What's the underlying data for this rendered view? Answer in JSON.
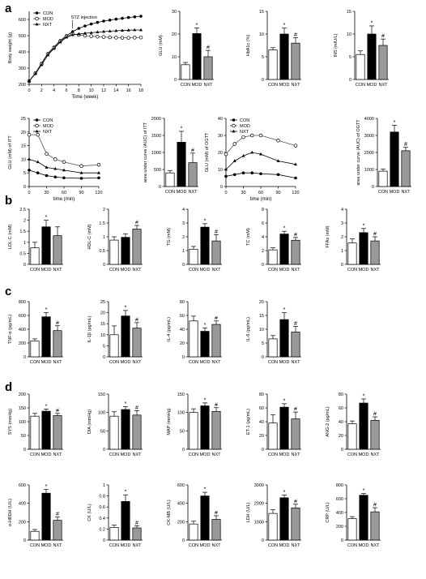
{
  "panel_letters": [
    "a",
    "b",
    "c",
    "d"
  ],
  "colors": {
    "CON": "#ffffff",
    "MOD": "#000000",
    "NXT": "#999999",
    "axis": "#000000"
  },
  "chart_data": [
    {
      "type": "line",
      "panel": "a",
      "xlabel": "Time (week)",
      "ylabel": "Body weight (g)",
      "annotation": "STZ injection",
      "annotation_x": 7,
      "xlim": [
        0,
        18
      ],
      "ylim": [
        200,
        650
      ],
      "xticks": [
        0,
        2,
        4,
        6,
        8,
        10,
        12,
        14,
        16,
        18
      ],
      "yticks": [
        200,
        300,
        400,
        500,
        600
      ],
      "x": [
        0,
        1,
        2,
        3,
        4,
        5,
        6,
        7,
        8,
        9,
        10,
        11,
        12,
        13,
        14,
        15,
        16,
        17,
        18
      ],
      "series": [
        {
          "name": "CON",
          "values": [
            220,
            270,
            330,
            390,
            430,
            470,
            500,
            525,
            545,
            560,
            572,
            582,
            590,
            596,
            602,
            607,
            612,
            616,
            620
          ]
        },
        {
          "name": "MOD",
          "values": [
            220,
            268,
            325,
            385,
            425,
            465,
            495,
            510,
            505,
            500,
            497,
            494,
            492,
            490,
            488,
            487,
            487,
            488,
            489
          ]
        },
        {
          "name": "NXT",
          "values": [
            220,
            265,
            320,
            380,
            420,
            460,
            490,
            505,
            510,
            515,
            518,
            522,
            525,
            528,
            530,
            532,
            534,
            535,
            535
          ]
        }
      ]
    },
    {
      "type": "bar",
      "panel": "a",
      "ylabel": "GLU (mM)",
      "categories": [
        "CON",
        "MOD",
        "NXT"
      ],
      "values": [
        6.5,
        20.2,
        10
      ],
      "errors": [
        1,
        2.5,
        2.8
      ],
      "ylim": [
        0,
        30
      ],
      "yticks": [
        0,
        10,
        20,
        30
      ],
      "marks": [
        "",
        "*",
        "#"
      ]
    },
    {
      "type": "bar",
      "panel": "a",
      "ylabel": "HbA1c (%)",
      "categories": [
        "CON",
        "MOD",
        "NXT"
      ],
      "values": [
        6.5,
        10,
        8
      ],
      "errors": [
        0.5,
        1.3,
        1.2
      ],
      "ylim": [
        0,
        15
      ],
      "yticks": [
        0,
        5,
        10,
        15
      ],
      "marks": [
        "",
        "*",
        "#"
      ]
    },
    {
      "type": "bar",
      "panel": "a",
      "ylabel": "INS (mIU/L)",
      "categories": [
        "CON",
        "MOD",
        "NXT"
      ],
      "values": [
        5.5,
        10,
        7.5
      ],
      "errors": [
        0.8,
        1.8,
        1.4
      ],
      "ylim": [
        0,
        15
      ],
      "yticks": [
        0,
        5,
        10,
        15
      ],
      "marks": [
        "",
        "*",
        "#"
      ]
    },
    {
      "type": "line",
      "panel": "a",
      "xlabel": "time (min)",
      "ylabel": "GLU (mM) of ITT",
      "xlim": [
        0,
        120
      ],
      "ylim": [
        0,
        25
      ],
      "xticks": [
        0,
        30,
        60,
        90,
        120
      ],
      "yticks": [
        0,
        5,
        10,
        15,
        20,
        25
      ],
      "x": [
        0,
        15,
        30,
        45,
        60,
        90,
        120
      ],
      "series": [
        {
          "name": "CON",
          "values": [
            6,
            5,
            4,
            3.5,
            3.2,
            3,
            3.2
          ]
        },
        {
          "name": "MOD",
          "values": [
            19,
            19,
            12,
            10,
            9,
            7.5,
            8
          ]
        },
        {
          "name": "NXT",
          "values": [
            10,
            9,
            7,
            6.5,
            6,
            5,
            5
          ]
        }
      ]
    },
    {
      "type": "bar",
      "panel": "a",
      "ylabel": "area under curve (AUC) of ITT",
      "categories": [
        "CON",
        "MOD",
        "NXT"
      ],
      "values": [
        400,
        1300,
        700
      ],
      "errors": [
        70,
        320,
        280
      ],
      "ylim": [
        0,
        2000
      ],
      "yticks": [
        0,
        500,
        1000,
        1500,
        2000
      ],
      "marks": [
        "",
        "*",
        "#"
      ]
    },
    {
      "type": "line",
      "panel": "a",
      "xlabel": "time (min)",
      "ylabel": "GLU (mM) of OGTT",
      "xlim": [
        0,
        120
      ],
      "ylim": [
        0,
        40
      ],
      "xticks": [
        0,
        30,
        60,
        90,
        120
      ],
      "yticks": [
        0,
        10,
        20,
        30,
        40
      ],
      "x": [
        0,
        15,
        30,
        45,
        60,
        90,
        120
      ],
      "series": [
        {
          "name": "CON",
          "values": [
            6,
            7,
            8,
            8,
            7.5,
            7,
            5
          ]
        },
        {
          "name": "MOD",
          "values": [
            19,
            25,
            29,
            30,
            30,
            27,
            24
          ]
        },
        {
          "name": "NXT",
          "values": [
            10,
            15,
            18,
            20,
            19,
            15,
            13
          ]
        }
      ]
    },
    {
      "type": "bar",
      "panel": "a",
      "ylabel": "area under curve (AUC) of OGTT",
      "categories": [
        "CON",
        "MOD",
        "NXT"
      ],
      "values": [
        900,
        3200,
        2100
      ],
      "errors": [
        120,
        400,
        200
      ],
      "ylim": [
        0,
        4000
      ],
      "yticks": [
        0,
        1000,
        2000,
        3000,
        4000
      ],
      "marks": [
        "",
        "*",
        "#"
      ]
    },
    {
      "type": "bar",
      "panel": "b",
      "ylabel": "LDL-C (mM)",
      "categories": [
        "CON",
        "MOD",
        "NXT"
      ],
      "values": [
        0.75,
        1.7,
        1.3
      ],
      "errors": [
        0.25,
        0.3,
        0.4
      ],
      "ylim": [
        0,
        2.5
      ],
      "yticks": [
        0,
        0.5,
        1.0,
        1.5,
        2.0,
        2.5
      ],
      "marks": [
        "",
        "*",
        ""
      ]
    },
    {
      "type": "bar",
      "panel": "b",
      "ylabel": "HDL-C (mM)",
      "categories": [
        "CON",
        "MOD",
        "NXT"
      ],
      "values": [
        0.88,
        0.98,
        1.28
      ],
      "errors": [
        0.12,
        0.13,
        0.13
      ],
      "ylim": [
        0,
        2.0
      ],
      "yticks": [
        0,
        0.5,
        1.0,
        1.5,
        2.0
      ],
      "marks": [
        "",
        "",
        "#"
      ]
    },
    {
      "type": "bar",
      "panel": "b",
      "ylabel": "TG (mM)",
      "categories": [
        "CON",
        "MOD",
        "NXT"
      ],
      "values": [
        1.1,
        2.7,
        1.7
      ],
      "errors": [
        0.2,
        0.25,
        0.45
      ],
      "ylim": [
        0,
        4
      ],
      "yticks": [
        0,
        1,
        2,
        3,
        4
      ],
      "marks": [
        "",
        "*",
        "#"
      ]
    },
    {
      "type": "bar",
      "panel": "b",
      "ylabel": "TC (mM)",
      "categories": [
        "CON",
        "MOD",
        "NXT"
      ],
      "values": [
        2.1,
        4.4,
        3.5
      ],
      "errors": [
        0.3,
        0.4,
        0.4
      ],
      "ylim": [
        0,
        8
      ],
      "yticks": [
        0,
        2,
        4,
        6,
        8
      ],
      "marks": [
        "",
        "*",
        "#"
      ]
    },
    {
      "type": "bar",
      "panel": "b",
      "ylabel": "FFAs (mM)",
      "categories": [
        "CON",
        "MOD",
        "NXT"
      ],
      "values": [
        1.55,
        2.3,
        1.7
      ],
      "errors": [
        0.3,
        0.3,
        0.3
      ],
      "ylim": [
        0,
        4
      ],
      "yticks": [
        0,
        1,
        2,
        3,
        4
      ],
      "marks": [
        "",
        "*",
        "#"
      ]
    },
    {
      "type": "bar",
      "panel": "c",
      "ylabel": "TNF-α (pg/mL)",
      "categories": [
        "CON",
        "MOD",
        "NXT"
      ],
      "values": [
        230,
        580,
        380
      ],
      "errors": [
        30,
        60,
        70
      ],
      "ylim": [
        0,
        800
      ],
      "yticks": [
        0,
        200,
        400,
        600,
        800
      ],
      "marks": [
        "",
        "*",
        "#"
      ]
    },
    {
      "type": "bar",
      "panel": "c",
      "ylabel": "IL-1β (pg/mL)",
      "categories": [
        "CON",
        "MOD",
        "NXT"
      ],
      "values": [
        10,
        18.5,
        13
      ],
      "errors": [
        4,
        2.5,
        2.5
      ],
      "ylim": [
        0,
        25
      ],
      "yticks": [
        0,
        5,
        10,
        15,
        20,
        25
      ],
      "marks": [
        "",
        "*",
        "#"
      ]
    },
    {
      "type": "bar",
      "panel": "c",
      "ylabel": "IL-4 (pg/mL)",
      "categories": [
        "CON",
        "MOD",
        "NXT"
      ],
      "values": [
        52,
        37,
        47
      ],
      "errors": [
        7,
        5,
        5
      ],
      "ylim": [
        0,
        80
      ],
      "yticks": [
        0,
        20,
        40,
        60,
        80
      ],
      "marks": [
        "",
        "*",
        "#"
      ]
    },
    {
      "type": "bar",
      "panel": "c",
      "ylabel": "IL-6 (pg/mL)",
      "categories": [
        "CON",
        "MOD",
        "NXT"
      ],
      "values": [
        6.5,
        13.5,
        9
      ],
      "errors": [
        1.2,
        2.5,
        2
      ],
      "ylim": [
        0,
        20
      ],
      "yticks": [
        0,
        5,
        10,
        15,
        20
      ],
      "marks": [
        "",
        "*",
        "#"
      ]
    },
    {
      "type": "bar",
      "panel": "d",
      "ylabel": "SYS (mmHg)",
      "categories": [
        "CON",
        "MOD",
        "NXT"
      ],
      "values": [
        120,
        138,
        122
      ],
      "errors": [
        10,
        8,
        8
      ],
      "ylim": [
        0,
        200
      ],
      "yticks": [
        0,
        50,
        100,
        150,
        200
      ],
      "marks": [
        "",
        "*",
        "#"
      ]
    },
    {
      "type": "bar",
      "panel": "d",
      "ylabel": "DIA (mmHg)",
      "categories": [
        "CON",
        "MOD",
        "NXT"
      ],
      "values": [
        90,
        108,
        93
      ],
      "errors": [
        12,
        8,
        12
      ],
      "ylim": [
        0,
        150
      ],
      "yticks": [
        0,
        50,
        100,
        150
      ],
      "marks": [
        "",
        "*",
        "#"
      ]
    },
    {
      "type": "bar",
      "panel": "d",
      "ylabel": "MAP (mmHg)",
      "categories": [
        "CON",
        "MOD",
        "NXT"
      ],
      "values": [
        100,
        118,
        103
      ],
      "errors": [
        10,
        8,
        10
      ],
      "ylim": [
        0,
        150
      ],
      "yticks": [
        0,
        50,
        100,
        150
      ],
      "marks": [
        "",
        "*",
        "#"
      ]
    },
    {
      "type": "bar",
      "panel": "d",
      "ylabel": "ET-1 (pg/mL)",
      "categories": [
        "CON",
        "MOD",
        "NXT"
      ],
      "values": [
        38,
        61,
        44
      ],
      "errors": [
        12,
        5,
        10
      ],
      "ylim": [
        0,
        80
      ],
      "yticks": [
        0,
        20,
        40,
        60,
        80
      ],
      "marks": [
        "",
        "*",
        "#"
      ]
    },
    {
      "type": "bar",
      "panel": "d",
      "ylabel": "ANG-2 (pg/mL)",
      "categories": [
        "CON",
        "MOD",
        "NXT"
      ],
      "values": [
        37,
        67,
        42
      ],
      "errors": [
        4,
        6,
        5
      ],
      "ylim": [
        0,
        80
      ],
      "yticks": [
        0,
        20,
        40,
        60,
        80
      ],
      "marks": [
        "",
        "*",
        "#"
      ]
    },
    {
      "type": "bar",
      "panel": "d",
      "ylabel": "α-HBDH (U/L)",
      "categories": [
        "CON",
        "MOD",
        "NXT"
      ],
      "values": [
        95,
        510,
        215
      ],
      "errors": [
        20,
        40,
        35
      ],
      "ylim": [
        0,
        600
      ],
      "yticks": [
        0,
        200,
        400,
        600
      ],
      "marks": [
        "",
        "*",
        "#"
      ]
    },
    {
      "type": "bar",
      "panel": "d",
      "ylabel": "CK (U/L)",
      "categories": [
        "CON",
        "MOD",
        "NXT"
      ],
      "values": [
        0.23,
        0.7,
        0.22
      ],
      "errors": [
        0.04,
        0.12,
        0.04
      ],
      "ylim": [
        0,
        1.0
      ],
      "yticks": [
        0,
        0.2,
        0.4,
        0.6,
        0.8,
        1.0
      ],
      "marks": [
        "",
        "*",
        "#"
      ]
    },
    {
      "type": "bar",
      "panel": "d",
      "ylabel": "CK-MB (U/L)",
      "categories": [
        "CON",
        "MOD",
        "NXT"
      ],
      "values": [
        175,
        480,
        225
      ],
      "errors": [
        30,
        40,
        40
      ],
      "ylim": [
        0,
        600
      ],
      "yticks": [
        0,
        200,
        400,
        600
      ],
      "marks": [
        "",
        "*",
        "#"
      ]
    },
    {
      "type": "bar",
      "panel": "d",
      "ylabel": "LDH (U/L)",
      "categories": [
        "CON",
        "MOD",
        "NXT"
      ],
      "values": [
        1450,
        2300,
        1750
      ],
      "errors": [
        200,
        150,
        200
      ],
      "ylim": [
        0,
        3000
      ],
      "yticks": [
        0,
        1000,
        2000,
        3000
      ],
      "marks": [
        "",
        "*",
        "#"
      ]
    },
    {
      "type": "bar",
      "panel": "d",
      "ylabel": "CRP (U/L)",
      "categories": [
        "CON",
        "MOD",
        "NXT"
      ],
      "values": [
        310,
        650,
        410
      ],
      "errors": [
        30,
        25,
        60
      ],
      "ylim": [
        0,
        800
      ],
      "yticks": [
        0,
        200,
        400,
        600,
        800
      ],
      "marks": [
        "",
        "*",
        "#"
      ]
    }
  ]
}
